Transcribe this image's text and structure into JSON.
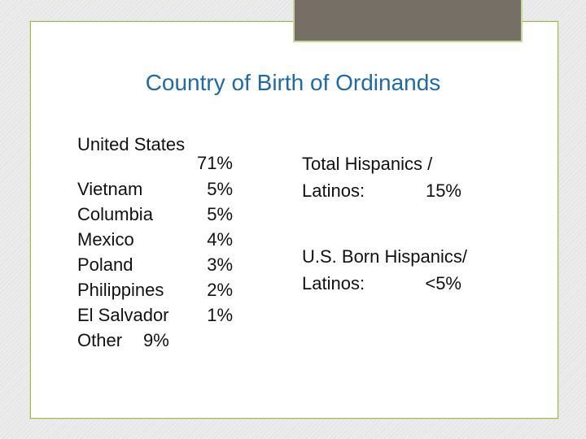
{
  "title": "Country of Birth of Ordinands",
  "countries": [
    {
      "label": "United States",
      "value": "71%"
    },
    {
      "label": "Vietnam",
      "value": "5%"
    },
    {
      "label": "Columbia",
      "value": "5%"
    },
    {
      "label": "Mexico",
      "value": "4%"
    },
    {
      "label": "Poland",
      "value": "3%"
    },
    {
      "label": "Philippines",
      "value": "2%"
    },
    {
      "label": "El Salvador",
      "value": "1%"
    },
    {
      "label": "Other",
      "value": "9%"
    }
  ],
  "hispanics": [
    {
      "heading": "Total Hispanics /",
      "label": "Latinos:",
      "value": "15%"
    },
    {
      "heading": "U.S. Born Hispanics/",
      "label": "Latinos:",
      "value": "<5%"
    }
  ]
}
